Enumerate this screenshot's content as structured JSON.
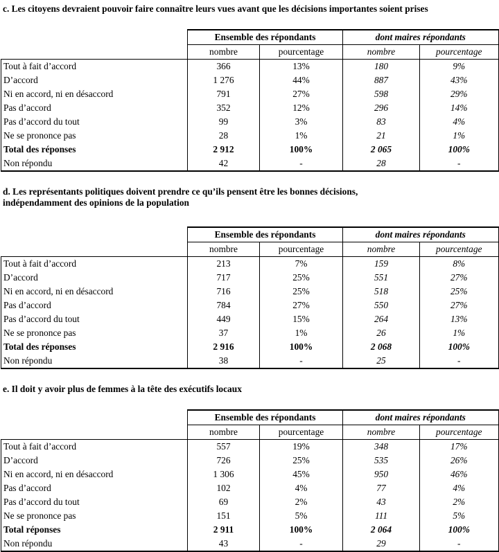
{
  "table_headers": {
    "group_ensemble": "Ensemble des répondants",
    "group_maires": "dont maires répondants",
    "sub_nombre": "nombre",
    "sub_pourcentage": "pourcentage"
  },
  "sections": [
    {
      "id": "c",
      "title": "c. Les citoyens devraient pouvoir faire connaître leurs vues avant que les décisions importantes soient prises",
      "rows": [
        {
          "label": "Tout à fait d’accord",
          "values": [
            "366",
            "13%",
            "180",
            "9%"
          ],
          "bold": false
        },
        {
          "label": "D’accord",
          "values": [
            "1 276",
            "44%",
            "887",
            "43%"
          ],
          "bold": false
        },
        {
          "label": "Ni en accord, ni en désaccord",
          "values": [
            "791",
            "27%",
            "598",
            "29%"
          ],
          "bold": false
        },
        {
          "label": "Pas d’accord",
          "values": [
            "352",
            "12%",
            "296",
            "14%"
          ],
          "bold": false
        },
        {
          "label": "Pas d’accord du tout",
          "values": [
            "99",
            "3%",
            "83",
            "4%"
          ],
          "bold": false
        },
        {
          "label": "Ne se prononce pas",
          "values": [
            "28",
            "1%",
            "21",
            "1%"
          ],
          "bold": false
        },
        {
          "label": "Total des réponses",
          "values": [
            "2 912",
            "100%",
            "2 065",
            "100%"
          ],
          "bold": true
        },
        {
          "label": "Non répondu",
          "values": [
            "42",
            "-",
            "28",
            "-"
          ],
          "bold": false
        }
      ]
    },
    {
      "id": "d",
      "title": "d. Les représentants politiques doivent prendre ce qu’ils pensent être les bonnes décisions,\nindépendamment des opinions de la population",
      "rows": [
        {
          "label": "Tout à fait d’accord",
          "values": [
            "213",
            "7%",
            "159",
            "8%"
          ],
          "bold": false
        },
        {
          "label": "D’accord",
          "values": [
            "717",
            "25%",
            "551",
            "27%"
          ],
          "bold": false
        },
        {
          "label": "Ni en accord, ni en désaccord",
          "values": [
            "716",
            "25%",
            "518",
            "25%"
          ],
          "bold": false
        },
        {
          "label": "Pas d’accord",
          "values": [
            "784",
            "27%",
            "550",
            "27%"
          ],
          "bold": false
        },
        {
          "label": "Pas d’accord du tout",
          "values": [
            "449",
            "15%",
            "264",
            "13%"
          ],
          "bold": false
        },
        {
          "label": "Ne se prononce pas",
          "values": [
            "37",
            "1%",
            "26",
            "1%"
          ],
          "bold": false
        },
        {
          "label": "Total des réponses",
          "values": [
            "2 916",
            "100%",
            "2 068",
            "100%"
          ],
          "bold": true
        },
        {
          "label": "Non répondu",
          "values": [
            "38",
            "-",
            "25",
            "-"
          ],
          "bold": false
        }
      ]
    },
    {
      "id": "e",
      "title": "e. Il doit y avoir plus de femmes à la tête des exécutifs locaux",
      "rows": [
        {
          "label": "Tout à fait d’accord",
          "values": [
            "557",
            "19%",
            "348",
            "17%"
          ],
          "bold": false
        },
        {
          "label": "D’accord",
          "values": [
            "726",
            "25%",
            "535",
            "26%"
          ],
          "bold": false
        },
        {
          "label": "Ni en accord, ni en désaccord",
          "values": [
            "1 306",
            "45%",
            "950",
            "46%"
          ],
          "bold": false
        },
        {
          "label": "Pas d’accord",
          "values": [
            "102",
            "4%",
            "77",
            "4%"
          ],
          "bold": false
        },
        {
          "label": "Pas d’accord du tout",
          "values": [
            "69",
            "2%",
            "43",
            "2%"
          ],
          "bold": false
        },
        {
          "label": "Ne se prononce pas",
          "values": [
            "151",
            "5%",
            "111",
            "5%"
          ],
          "bold": false
        },
        {
          "label": "Total réponses",
          "values": [
            "2 911",
            "100%",
            "2 064",
            "100%"
          ],
          "bold": true
        },
        {
          "label": "Non répondu",
          "values": [
            "43",
            "-",
            "29",
            "-"
          ],
          "bold": false
        }
      ]
    }
  ]
}
